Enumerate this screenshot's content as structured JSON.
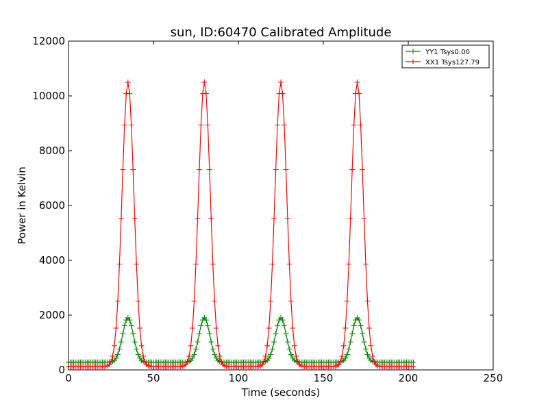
{
  "chart_data": {
    "type": "line",
    "title": "sun, ID:60470 Calibrated Amplitude",
    "xlabel": "Time (seconds)",
    "ylabel": "Power in Kelvin",
    "xlim": [
      0,
      250
    ],
    "ylim": [
      0,
      12000
    ],
    "x_ticks": [
      "0",
      "50",
      "100",
      "150",
      "200",
      "250"
    ],
    "y_ticks": [
      "0",
      "2000",
      "4000",
      "6000",
      "8000",
      "10000",
      "12000"
    ],
    "grid": false,
    "legend_position": "top-right",
    "marker": "+",
    "x_range": [
      0,
      203
    ],
    "x_step": 1,
    "series": [
      {
        "name": "YY1 Tsys0.00",
        "color": "#008000",
        "baseline": 280,
        "peaks": [
          {
            "center": 35,
            "height": 1620,
            "sigma": 3.2
          },
          {
            "center": 80,
            "height": 1620,
            "sigma": 3.2
          },
          {
            "center": 125,
            "height": 1620,
            "sigma": 3.2
          },
          {
            "center": 170,
            "height": 1620,
            "sigma": 3.2
          }
        ],
        "peak_value": 1900
      },
      {
        "name": "XX1 Tsys127.79",
        "color": "#ff0000",
        "baseline": 120,
        "peaks": [
          {
            "center": 35,
            "height": 10380,
            "sigma": 3.5
          },
          {
            "center": 80,
            "height": 10380,
            "sigma": 3.5
          },
          {
            "center": 125,
            "height": 10380,
            "sigma": 3.5
          },
          {
            "center": 170,
            "height": 10380,
            "sigma": 3.5
          }
        ],
        "peak_value": 10500
      }
    ]
  }
}
